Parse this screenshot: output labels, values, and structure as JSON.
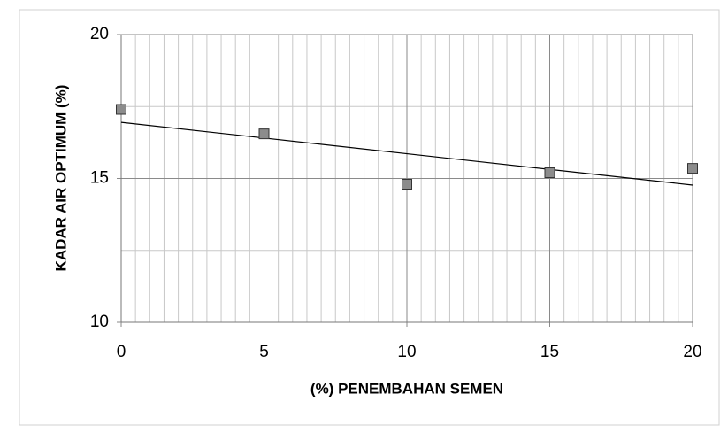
{
  "chart_data": {
    "type": "scatter",
    "x_label": "(%) PENEMBAHAN SEMEN",
    "y_label": "KADAR AIR OPTIMUM (%)",
    "x": [
      0,
      5,
      10,
      15,
      20
    ],
    "values": [
      17.4,
      16.55,
      14.8,
      15.2,
      15.35
    ],
    "color": "#8c8c8c",
    "xlim": [
      0,
      20
    ],
    "xticks": [
      0,
      5,
      10,
      15,
      20
    ],
    "ylim": [
      10,
      20
    ],
    "yticks": [
      10,
      15,
      20
    ],
    "grid": true,
    "minor_grid": true,
    "trendline": "linear"
  }
}
